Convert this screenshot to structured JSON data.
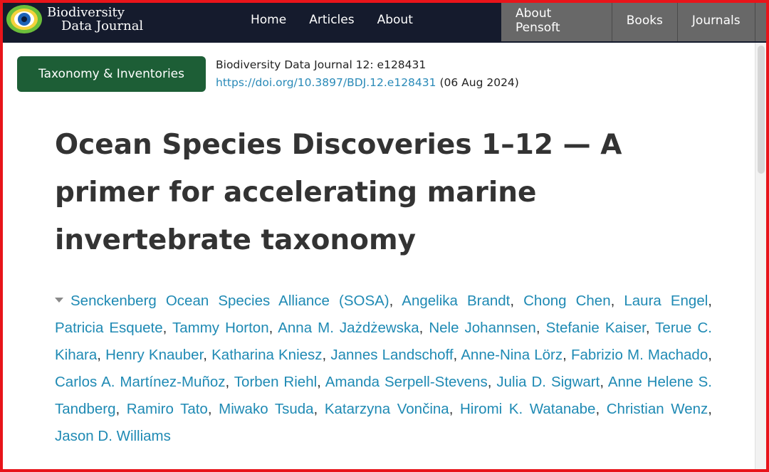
{
  "logo": {
    "line1": "Biodiversity",
    "line2": "Data Journal"
  },
  "nav": {
    "main": [
      "Home",
      "Articles",
      "About"
    ],
    "right": [
      "About Pensoft",
      "Books",
      "Journals"
    ]
  },
  "article": {
    "category": "Taxonomy & Inventories",
    "citation": "Biodiversity Data Journal 12: e128431",
    "doi": "https://doi.org/10.3897/BDJ.12.e128431",
    "date": "(06 Aug 2024)",
    "title": "Ocean Species Discoveries 1–12 — A primer for accelerating marine invertebrate taxonomy",
    "authors": [
      "Senckenberg Ocean Species Alliance (SOSA)",
      "Angelika Brandt",
      "Chong Chen",
      "Laura Engel",
      "Patricia Esquete",
      "Tammy Horton",
      "Anna M. Jażdżewska",
      "Nele Johannsen",
      "Stefanie Kaiser",
      "Terue C. Kihara",
      "Henry Knauber",
      "Katharina Kniesz",
      "Jannes Landschoff",
      "Anne-Nina Lörz",
      "Fabrizio M. Machado",
      "Carlos A. Martínez-Muñoz",
      "Torben Riehl",
      "Amanda Serpell-Stevens",
      "Julia D. Sigwart",
      "Anne Helene S. Tandberg",
      "Ramiro Tato",
      "Miwako Tsuda",
      "Katarzyna Vončina",
      "Hiromi K. Watanabe",
      "Christian Wenz",
      "Jason D. Williams"
    ]
  },
  "colors": {
    "navbar": "#151b2d",
    "nav_right_bg": "#686868",
    "category_badge": "#1d5e36",
    "link": "#1f8ab4",
    "highlight_border": "#e8141a"
  }
}
